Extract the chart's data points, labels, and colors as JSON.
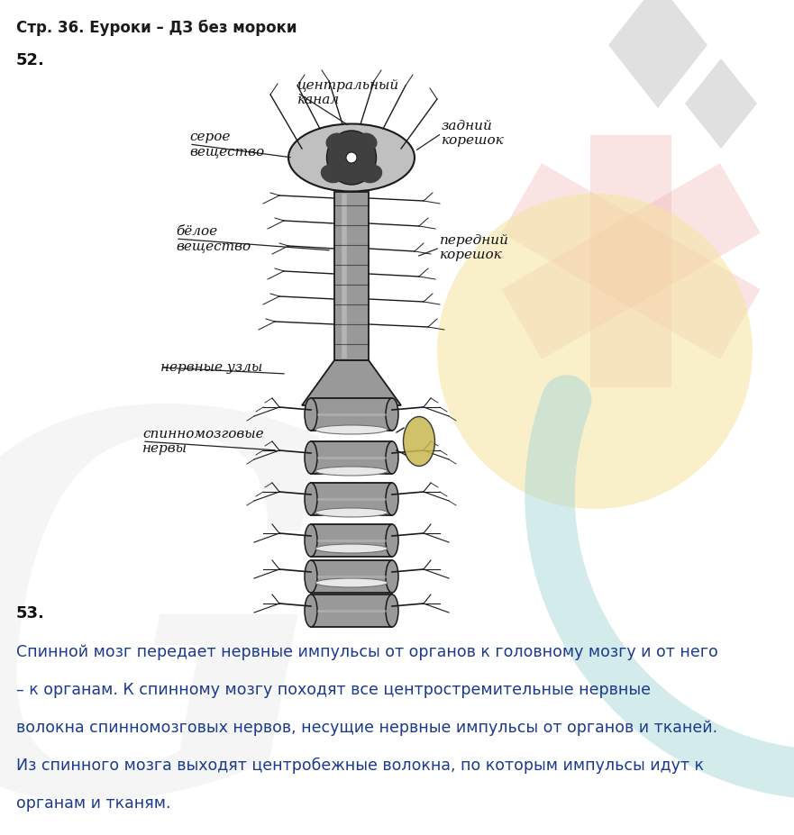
{
  "title": "Стр. 36. Еуроки – ДЗ без мороки",
  "title_fontsize": 12,
  "title_color": "#1a1a1a",
  "section52": "52.",
  "section53": "53.",
  "section_fontsize": 13,
  "text53_lines": [
    "Спинной мозг передает нервные импульсы от органов к головному мозгу и от него",
    "– к органам. К спинному мозгу походят все центростремительные нервные",
    "волокна спинномозговых нервов, несущие нервные импульсы от органов и тканей.",
    "Из спинного мозга выходят центробежные волокна, по которым импульсы идут к",
    "органам и тканям."
  ],
  "text53_fontsize": 12.5,
  "text53_color": "#1a3a8f",
  "bg_color": "#ffffff",
  "wm_gray": "#cccccc",
  "wm_pink": "#f0b0b0",
  "wm_yellow": "#f5e5a0",
  "wm_teal": "#a8d8d8"
}
